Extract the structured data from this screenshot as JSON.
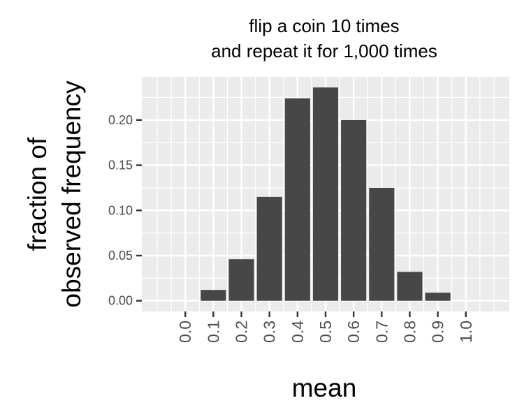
{
  "chart_data": {
    "type": "bar",
    "title_lines": [
      "flip a coin 10 times",
      "and repeat it for 1,000 times"
    ],
    "xlabel": "mean",
    "ylabel_lines": [
      "fraction of",
      "observed frequency"
    ],
    "x": [
      0.0,
      0.1,
      0.2,
      0.3,
      0.4,
      0.5,
      0.6,
      0.7,
      0.8,
      0.9,
      1.0
    ],
    "values": [
      0.0,
      0.012,
      0.046,
      0.115,
      0.224,
      0.236,
      0.2,
      0.125,
      0.032,
      0.009,
      0.0
    ],
    "x_tick_labels": [
      "0.0",
      "0.1",
      "0.2",
      "0.3",
      "0.4",
      "0.5",
      "0.6",
      "0.7",
      "0.8",
      "0.9",
      "1.0"
    ],
    "y_ticks": [
      0.0,
      0.05,
      0.1,
      0.15,
      0.2
    ],
    "y_tick_labels": [
      "0.00",
      "0.05",
      "0.10",
      "0.15",
      "0.20"
    ],
    "xlim": [
      -0.155,
      1.155
    ],
    "ylim": [
      -0.0118,
      0.2478
    ],
    "grid": true,
    "legend": "none",
    "colors": {
      "bar": "#474747",
      "panel_background": "#ebebeb",
      "grid": "#ffffff",
      "tick_text": "#4d4d4d",
      "tick_mark": "#333333"
    }
  }
}
